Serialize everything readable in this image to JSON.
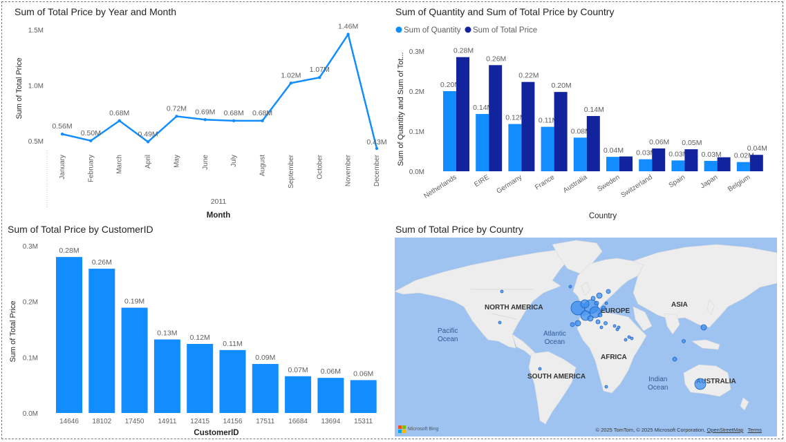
{
  "line_chart": {
    "title": "Sum of Total Price by Year and Month",
    "chart_data": {
      "type": "line",
      "title": "Sum of Total Price by Year and Month",
      "xlabel": "Month",
      "ylabel": "Sum of Total Price",
      "year_label": "2011",
      "categories": [
        "January",
        "February",
        "March",
        "April",
        "May",
        "June",
        "July",
        "August",
        "September",
        "October",
        "November",
        "December"
      ],
      "values": [
        0.56,
        0.5,
        0.68,
        0.49,
        0.72,
        0.69,
        0.68,
        0.68,
        1.02,
        1.07,
        1.46,
        0.43
      ],
      "value_labels": [
        "0.56M",
        "0.50M",
        "0.68M",
        "0.49M",
        "0.72M",
        "0.69M",
        "0.68M",
        "0.68M",
        "1.02M",
        "1.07M",
        "1.46M",
        "0.43M"
      ],
      "y_ticks": [
        {
          "value": 0.5,
          "label": "0.5M"
        },
        {
          "value": 1.0,
          "label": "1.0M"
        },
        {
          "value": 1.5,
          "label": "1.5M"
        }
      ],
      "ylim": [
        0.43,
        1.52
      ],
      "color": "#118dff"
    }
  },
  "country_bar_chart": {
    "title": "Sum of Quantity and Sum of Total Price by Country",
    "chart_data": {
      "type": "bar",
      "title": "Sum of Quantity and Sum of Total Price by Country",
      "xlabel": "Country",
      "ylabel": "Sum of Quantity and Sum of Tot...",
      "categories": [
        "Netherlands",
        "EIRE",
        "Germany",
        "France",
        "Australia",
        "Sweden",
        "Switzerland",
        "Spain",
        "Japan",
        "Belgium"
      ],
      "series": [
        {
          "name": "Sum of Quantity",
          "color": "#118dff",
          "values": [
            0.2,
            0.143,
            0.118,
            0.111,
            0.084,
            0.036,
            0.03,
            0.027,
            0.026,
            0.023
          ],
          "labels": [
            "0.20M",
            "0.14M",
            "0.12M",
            "0.11M",
            "0.08M",
            "0.04M",
            "0.03M",
            "0.03M",
            "0.03M",
            "0.02M"
          ]
        },
        {
          "name": "Sum of Total Price",
          "color": "#12239e",
          "values": [
            0.285,
            0.265,
            0.223,
            0.198,
            0.138,
            0.037,
            0.057,
            0.055,
            0.035,
            0.041
          ],
          "labels": [
            "0.28M",
            "0.26M",
            "0.22M",
            "0.20M",
            "0.14M",
            "",
            "0.06M",
            "0.05M",
            "",
            "0.04M"
          ]
        }
      ],
      "y_ticks": [
        {
          "value": 0,
          "label": "0.0M"
        },
        {
          "value": 0.1,
          "label": "0.1M"
        },
        {
          "value": 0.2,
          "label": "0.2M"
        },
        {
          "value": 0.3,
          "label": "0.3M"
        }
      ],
      "ylim": [
        0,
        0.3
      ],
      "legend": "top-left"
    }
  },
  "customer_bar_chart": {
    "title": "Sum of Total Price by CustomerID",
    "chart_data": {
      "type": "bar",
      "title": "Sum of Total Price by CustomerID",
      "xlabel": "CustomerID",
      "ylabel": "Sum of Total Price",
      "categories": [
        "14646",
        "18102",
        "17450",
        "14911",
        "12415",
        "14156",
        "17511",
        "16684",
        "13694",
        "15311"
      ],
      "values": [
        0.28,
        0.26,
        0.19,
        0.13,
        0.12,
        0.11,
        0.09,
        0.07,
        0.06,
        0.06
      ],
      "bar_heights": [
        0.28,
        0.259,
        0.189,
        0.132,
        0.124,
        0.113,
        0.088,
        0.066,
        0.063,
        0.059
      ],
      "value_labels": [
        "0.28M",
        "0.26M",
        "0.19M",
        "0.13M",
        "0.12M",
        "0.11M",
        "0.09M",
        "0.07M",
        "0.06M",
        "0.06M"
      ],
      "y_ticks": [
        {
          "value": 0,
          "label": "0.0M"
        },
        {
          "value": 0.1,
          "label": "0.1M"
        },
        {
          "value": 0.2,
          "label": "0.2M"
        },
        {
          "value": 0.3,
          "label": "0.3M"
        }
      ],
      "ylim": [
        0,
        0.3
      ],
      "color": "#118dff"
    }
  },
  "map": {
    "title": "Sum of Total Price by Country",
    "labels": {
      "north_america": "NORTH AMERICA",
      "south_america": "SOUTH AMERICA",
      "europe": "EUROPE",
      "africa": "AFRICA",
      "asia": "ASIA",
      "australia": "AUSTRALIA",
      "pacific_1": "Pacific",
      "pacific_2": "Ocean",
      "atlantic_1": "Atlantic",
      "atlantic_2": "Ocean",
      "indian_1": "Indian",
      "indian_2": "Ocean"
    },
    "bing_logo": "Microsoft Bing",
    "attribution": "© 2025 TomTom, © 2025 Microsoft Corporation,",
    "osm_link": "OpenStreetMap",
    "terms_link": "Terms",
    "colors": {
      "water": "#9fc3f0",
      "land": "#eeeeee",
      "bubble": "#3b8ef0",
      "bubble_stroke": "#1a5fc0"
    }
  }
}
